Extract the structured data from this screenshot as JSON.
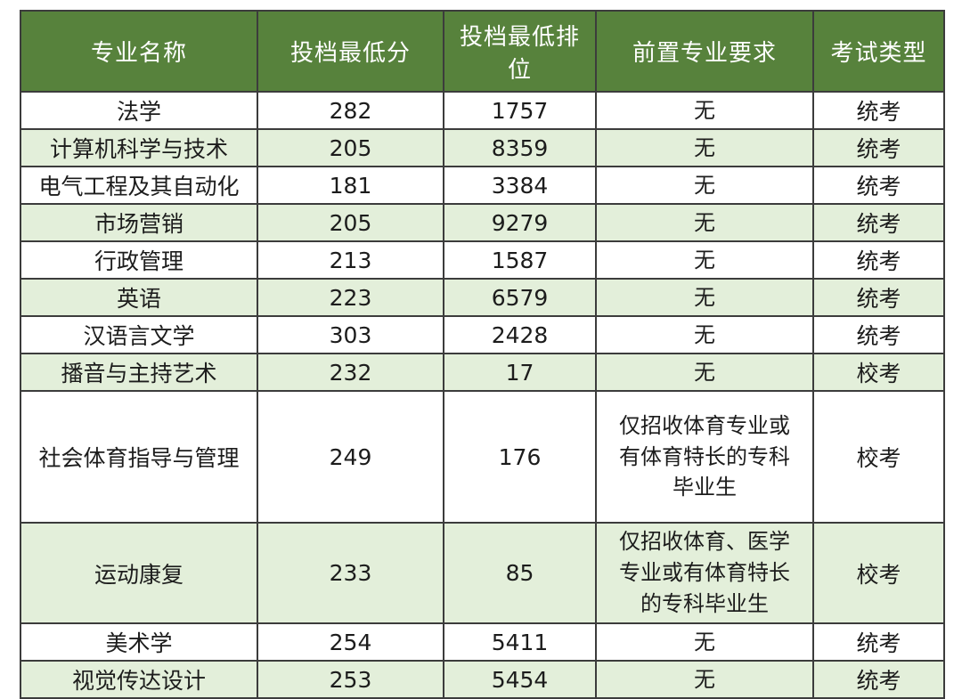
{
  "table": {
    "columns": [
      {
        "label": "专业名称"
      },
      {
        "label": "投档最低分"
      },
      {
        "label": "投档最低排位"
      },
      {
        "label": "前置专业要求"
      },
      {
        "label": "考试类型"
      }
    ],
    "rows": [
      {
        "major": "法学",
        "min_score": "282",
        "min_rank": "1757",
        "requirement": "无",
        "exam_type": "统考"
      },
      {
        "major": "计算机科学与技术",
        "min_score": "205",
        "min_rank": "8359",
        "requirement": "无",
        "exam_type": "统考"
      },
      {
        "major": "电气工程及其自动化",
        "min_score": "181",
        "min_rank": "3384",
        "requirement": "无",
        "exam_type": "统考"
      },
      {
        "major": "市场营销",
        "min_score": "205",
        "min_rank": "9279",
        "requirement": "无",
        "exam_type": "统考"
      },
      {
        "major": "行政管理",
        "min_score": "213",
        "min_rank": "1587",
        "requirement": "无",
        "exam_type": "统考"
      },
      {
        "major": "英语",
        "min_score": "223",
        "min_rank": "6579",
        "requirement": "无",
        "exam_type": "统考"
      },
      {
        "major": "汉语言文学",
        "min_score": "303",
        "min_rank": "2428",
        "requirement": "无",
        "exam_type": "统考"
      },
      {
        "major": "播音与主持艺术",
        "min_score": "232",
        "min_rank": "17",
        "requirement": "无",
        "exam_type": "校考"
      },
      {
        "major": "社会体育指导与管理",
        "min_score": "249",
        "min_rank": "176",
        "requirement": "仅招收体育专业或\n有体育特长的专科\n毕业生",
        "exam_type": "校考"
      },
      {
        "major": "运动康复",
        "min_score": "233",
        "min_rank": "85",
        "requirement": "仅招收体育、医学\n专业或有体育特长\n的专科毕业生",
        "exam_type": "校考"
      },
      {
        "major": "美术学",
        "min_score": "254",
        "min_rank": "5411",
        "requirement": "无",
        "exam_type": "统考"
      },
      {
        "major": "视觉传达设计",
        "min_score": "253",
        "min_rank": "5454",
        "requirement": "无",
        "exam_type": "统考"
      }
    ]
  },
  "colors": {
    "header_bg": "#57823c",
    "header_text": "#ffffff",
    "row_alt_bg": "#e3efda",
    "row_bg": "#ffffff",
    "border": "#3c3c3c",
    "text": "#1c1c1c"
  }
}
